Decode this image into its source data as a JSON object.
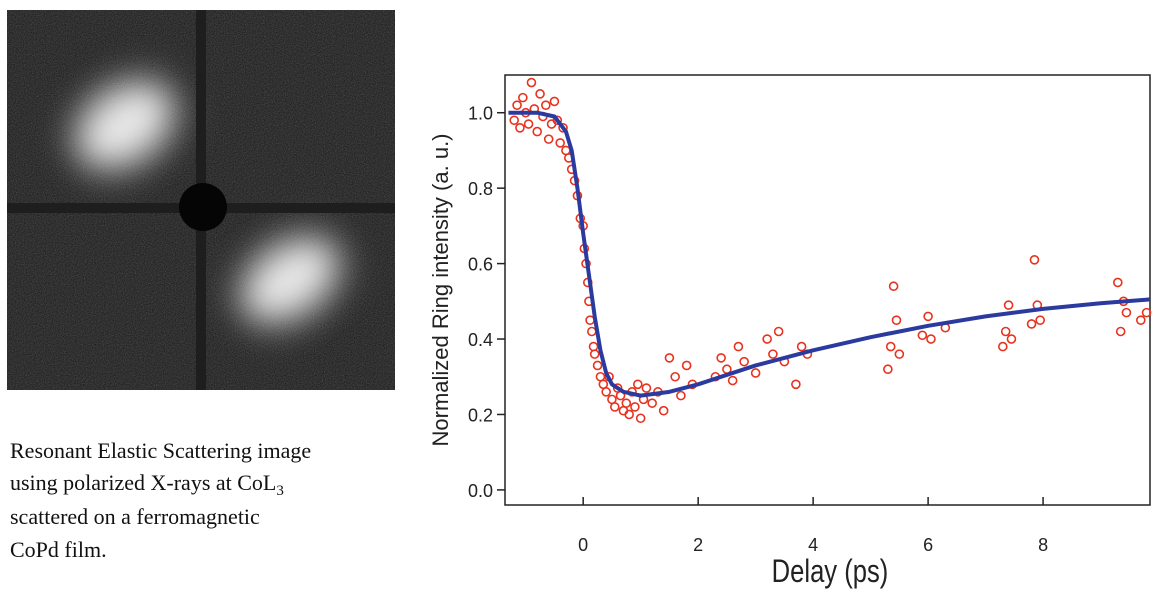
{
  "figure": {
    "caption": {
      "lines": [
        "Resonant Elastic Scattering image",
        "using polarized X-rays at CoL",
        "scattered on a ferromagnetic",
        "CoPd film."
      ],
      "subscript": "3"
    }
  },
  "chart_data": {
    "type": "scatter",
    "y_label": "Normalized Ring intensity (a. u.)",
    "x_label": "Delay (ps)",
    "xlim": [
      -1.36,
      9.86
    ],
    "ylim": [
      -0.04,
      1.1
    ],
    "xticks": [
      0,
      2,
      4,
      6,
      8
    ],
    "yticks": [
      {
        "value": 0,
        "label": "0.0"
      },
      {
        "value": 0.2,
        "label": "0.2"
      },
      {
        "value": 0.4,
        "label": "0.4"
      },
      {
        "value": 0.6,
        "label": "0.6"
      },
      {
        "value": 0.8,
        "label": "0.8"
      },
      {
        "value": 1,
        "label": "1.0"
      }
    ],
    "grid": false,
    "series": [
      {
        "type": "scatter",
        "color": "#e8321e",
        "x": [
          -1.2,
          -1.15,
          -1.1,
          -1.05,
          -1.0,
          -0.95,
          -0.9,
          -0.85,
          -0.8,
          -0.75,
          -0.7,
          -0.65,
          -0.6,
          -0.55,
          -0.5,
          -0.45,
          -0.4,
          -0.35,
          -0.3,
          -0.25,
          -0.2,
          -0.15,
          -0.1,
          -0.05,
          0,
          0.02,
          0.05,
          0.08,
          0.1,
          0.12,
          0.15,
          0.18,
          0.2,
          0.25,
          0.3,
          0.35,
          0.4,
          0.45,
          0.5,
          0.55,
          0.6,
          0.65,
          0.7,
          0.75,
          0.8,
          0.85,
          0.9,
          0.95,
          1.0,
          1.05,
          1.1,
          1.2,
          1.3,
          1.4,
          1.5,
          1.6,
          1.7,
          1.8,
          1.9,
          2.3,
          2.4,
          2.5,
          2.6,
          2.7,
          2.8,
          3.0,
          3.2,
          3.3,
          3.4,
          3.5,
          3.7,
          3.8,
          3.9,
          5.3,
          5.35,
          5.4,
          5.45,
          5.5,
          5.9,
          6.0,
          6.05,
          6.3,
          7.3,
          7.35,
          7.4,
          7.45,
          7.8,
          7.85,
          7.9,
          7.95,
          9.3,
          9.35,
          9.4,
          9.45,
          9.7,
          9.8
        ],
        "values": [
          0.98,
          1.02,
          0.96,
          1.04,
          1.0,
          0.97,
          1.08,
          1.01,
          0.95,
          1.05,
          0.99,
          1.02,
          0.93,
          0.97,
          1.03,
          0.98,
          0.92,
          0.96,
          0.9,
          0.88,
          0.85,
          0.82,
          0.78,
          0.72,
          0.7,
          0.64,
          0.6,
          0.55,
          0.5,
          0.45,
          0.42,
          0.38,
          0.36,
          0.33,
          0.3,
          0.28,
          0.26,
          0.3,
          0.24,
          0.22,
          0.27,
          0.25,
          0.21,
          0.23,
          0.2,
          0.26,
          0.22,
          0.28,
          0.19,
          0.24,
          0.27,
          0.23,
          0.26,
          0.21,
          0.35,
          0.3,
          0.25,
          0.33,
          0.28,
          0.3,
          0.35,
          0.32,
          0.29,
          0.38,
          0.34,
          0.31,
          0.4,
          0.36,
          0.42,
          0.34,
          0.28,
          0.38,
          0.36,
          0.32,
          0.38,
          0.54,
          0.45,
          0.36,
          0.41,
          0.46,
          0.4,
          0.43,
          0.38,
          0.42,
          0.49,
          0.4,
          0.44,
          0.61,
          0.49,
          0.45,
          0.55,
          0.42,
          0.5,
          0.47,
          0.45,
          0.47
        ]
      },
      {
        "type": "line",
        "color": "#2b3a9e",
        "x": [
          -1.3,
          -0.8,
          -0.5,
          -0.3,
          -0.2,
          -0.1,
          0,
          0.1,
          0.2,
          0.3,
          0.4,
          0.5,
          0.7,
          1.0,
          1.5,
          2,
          3,
          4,
          5,
          6,
          7,
          8,
          9,
          9.86
        ],
        "values": [
          1.0,
          1.0,
          0.99,
          0.95,
          0.9,
          0.8,
          0.68,
          0.57,
          0.46,
          0.37,
          0.31,
          0.28,
          0.26,
          0.25,
          0.26,
          0.28,
          0.33,
          0.37,
          0.405,
          0.435,
          0.46,
          0.48,
          0.495,
          0.505
        ]
      }
    ]
  }
}
